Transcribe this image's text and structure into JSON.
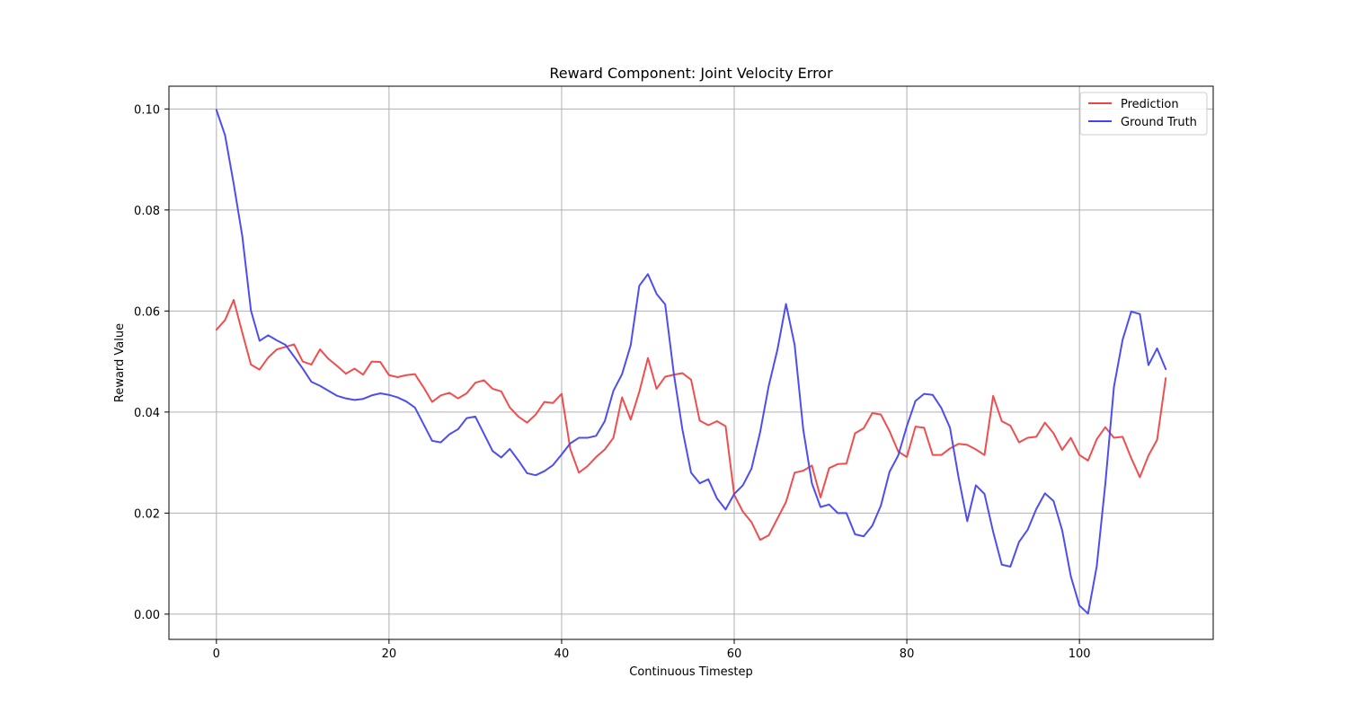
{
  "chart_data": {
    "type": "line",
    "title": "Reward Component: Joint Velocity Error",
    "xlabel": "Continuous Timestep",
    "ylabel": "Reward Value",
    "xlim": [
      -5.5,
      115.5
    ],
    "ylim": [
      -0.005,
      0.1045
    ],
    "xticks": [
      0,
      20,
      40,
      60,
      80,
      100
    ],
    "yticks": [
      0.0,
      0.02,
      0.04,
      0.06,
      0.08,
      0.1
    ],
    "xtick_labels": [
      "0",
      "20",
      "40",
      "60",
      "80",
      "100"
    ],
    "ytick_labels": [
      "0.00",
      "0.02",
      "0.04",
      "0.06",
      "0.08",
      "0.10"
    ],
    "grid": true,
    "legend_position": "top-right",
    "series": [
      {
        "name": "Prediction",
        "color": "#ef4444",
        "values": [
          0.0563,
          0.0582,
          0.0622,
          0.0557,
          0.0494,
          0.0484,
          0.0508,
          0.0524,
          0.0529,
          0.0534,
          0.05,
          0.0494,
          0.0524,
          0.0505,
          0.0491,
          0.0476,
          0.0486,
          0.0474,
          0.05,
          0.0499,
          0.0473,
          0.0469,
          0.0473,
          0.0475,
          0.0449,
          0.042,
          0.0433,
          0.0438,
          0.0427,
          0.0437,
          0.0458,
          0.0463,
          0.0446,
          0.0441,
          0.0409,
          0.0391,
          0.0379,
          0.0395,
          0.042,
          0.0418,
          0.0436,
          0.0327,
          0.028,
          0.0293,
          0.0311,
          0.0326,
          0.0349,
          0.0429,
          0.0385,
          0.044,
          0.0507,
          0.0446,
          0.047,
          0.0474,
          0.0477,
          0.0464,
          0.0383,
          0.0374,
          0.0382,
          0.0372,
          0.0236,
          0.0203,
          0.0182,
          0.0147,
          0.0156,
          0.0189,
          0.0222,
          0.028,
          0.0284,
          0.0294,
          0.0231,
          0.0289,
          0.0297,
          0.0298,
          0.0358,
          0.0368,
          0.0398,
          0.0395,
          0.0362,
          0.0322,
          0.0311,
          0.0371,
          0.0369,
          0.0315,
          0.0315,
          0.0328,
          0.0337,
          0.0335,
          0.0326,
          0.0315,
          0.0432,
          0.0382,
          0.0373,
          0.034,
          0.0349,
          0.0351,
          0.0379,
          0.0358,
          0.0325,
          0.0349,
          0.0315,
          0.0304,
          0.0346,
          0.037,
          0.0349,
          0.0351,
          0.0309,
          0.0271,
          0.0314,
          0.0345,
          0.0467
        ]
      },
      {
        "name": "Ground Truth",
        "color": "#4444ef",
        "values": [
          0.0998,
          0.0948,
          0.0852,
          0.0748,
          0.0601,
          0.0541,
          0.0552,
          0.0542,
          0.0533,
          0.051,
          0.0486,
          0.046,
          0.0452,
          0.0442,
          0.0432,
          0.0427,
          0.0424,
          0.0426,
          0.0433,
          0.0437,
          0.0434,
          0.0429,
          0.0421,
          0.0409,
          0.0376,
          0.0343,
          0.034,
          0.0356,
          0.0366,
          0.0388,
          0.0391,
          0.0357,
          0.0323,
          0.031,
          0.0327,
          0.0304,
          0.0279,
          0.0275,
          0.0283,
          0.0295,
          0.0316,
          0.0338,
          0.0349,
          0.0349,
          0.0353,
          0.0382,
          0.0442,
          0.0475,
          0.0532,
          0.065,
          0.0673,
          0.0634,
          0.0613,
          0.0476,
          0.0365,
          0.028,
          0.0259,
          0.0267,
          0.0229,
          0.0207,
          0.0238,
          0.0255,
          0.0288,
          0.036,
          0.0452,
          0.0523,
          0.0614,
          0.0533,
          0.0365,
          0.0259,
          0.0212,
          0.0217,
          0.02,
          0.02,
          0.0158,
          0.0154,
          0.0175,
          0.0215,
          0.0282,
          0.0314,
          0.0372,
          0.0422,
          0.0436,
          0.0434,
          0.0408,
          0.0369,
          0.027,
          0.0184,
          0.0255,
          0.0238,
          0.0163,
          0.0098,
          0.0094,
          0.0143,
          0.0167,
          0.0208,
          0.0239,
          0.0224,
          0.0166,
          0.0075,
          0.0017,
          0.0001,
          0.0094,
          0.0258,
          0.045,
          0.0543,
          0.0599,
          0.0594,
          0.0493,
          0.0526,
          0.0485
        ]
      }
    ]
  }
}
